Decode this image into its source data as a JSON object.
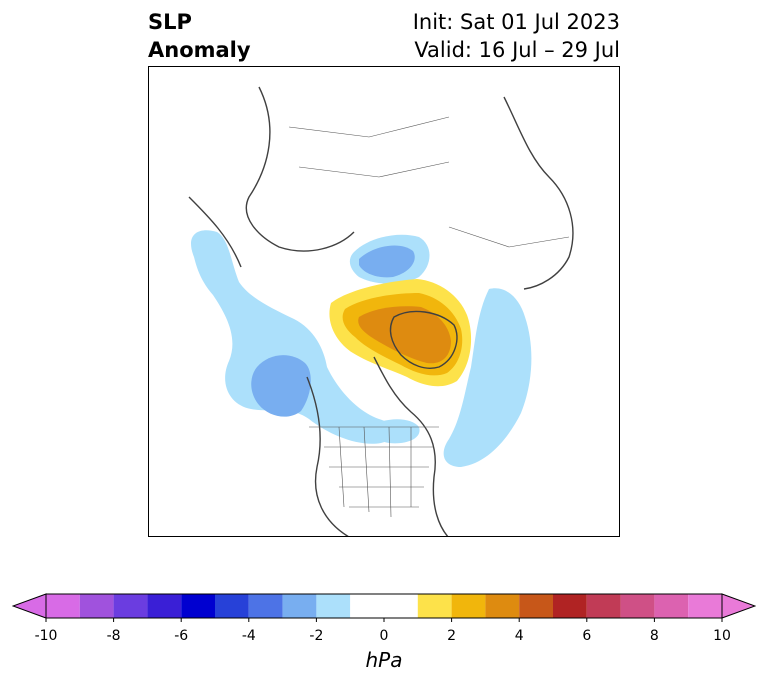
{
  "header": {
    "title_line1": "SLP",
    "title_line2": "Anomaly",
    "init_text": "Init: Sat 01 Jul 2023",
    "valid_text": "Valid: 16 Jul – 29 Jul"
  },
  "colorbar": {
    "unit": "hPa",
    "tick_labels": [
      "-10",
      "-8",
      "-6",
      "-4",
      "-2",
      "0",
      "2",
      "4",
      "6",
      "8",
      "10"
    ],
    "bins": [
      {
        "from": -10,
        "to": -9,
        "color": "#d86be6"
      },
      {
        "from": -9,
        "to": -8,
        "color": "#a052dd"
      },
      {
        "from": -8,
        "to": -7,
        "color": "#6b3de0"
      },
      {
        "from": -7,
        "to": -6,
        "color": "#3a1fd6"
      },
      {
        "from": -6,
        "to": -5,
        "color": "#0000d0"
      },
      {
        "from": -5,
        "to": -4,
        "color": "#2741d8"
      },
      {
        "from": -4,
        "to": -3,
        "color": "#4d73e6"
      },
      {
        "from": -3,
        "to": -2,
        "color": "#78aef0"
      },
      {
        "from": -2,
        "to": -1,
        "color": "#ace0fb"
      },
      {
        "from": -1,
        "to": 1,
        "color": "#ffffff"
      },
      {
        "from": 1,
        "to": 2,
        "color": "#fde24a"
      },
      {
        "from": 2,
        "to": 3,
        "color": "#f1b60c"
      },
      {
        "from": 3,
        "to": 4,
        "color": "#de8b10"
      },
      {
        "from": 4,
        "to": 5,
        "color": "#c75719"
      },
      {
        "from": 5,
        "to": 6,
        "color": "#b02323"
      },
      {
        "from": 6,
        "to": 7,
        "color": "#c13b56"
      },
      {
        "from": 7,
        "to": 8,
        "color": "#cf5086"
      },
      {
        "from": 8,
        "to": 9,
        "color": "#dc62b0"
      },
      {
        "from": 9,
        "to": 10,
        "color": "#e97ad8"
      }
    ]
  }
}
